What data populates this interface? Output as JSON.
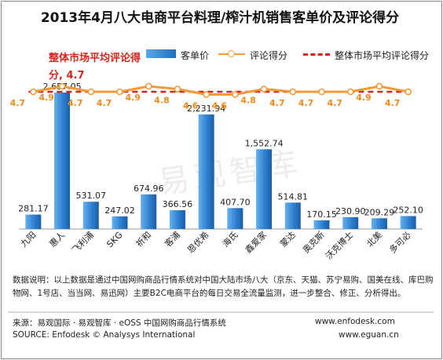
{
  "title": "2013年4月八大电商平台料理/榨汁机销售客单价及评论得分",
  "average_note": "整体市场平均评论得分, 4.7",
  "legend": {
    "bar": "客单价",
    "line": "评论得分",
    "avg": "整体市场平均评论得分"
  },
  "watermark": "易观智库",
  "note": "数据说明：以上数据是通过中国网购商品行情系统对中国大陆市场八大（京东、天猫、苏宁易购、国美在线、库巴购物网、1号店、当当网、易迅网）主要B2C电商平台的每日交易全流量监测，进一步整合、修正、分析得出。",
  "footer": {
    "source_cn": "来源：易观国际 · 易观智库 · eOSS 中国网购商品行情系统",
    "source_en": "SOURCE: Enfodesk © Analysys International",
    "url1": "www.enfodesk.com",
    "url2": "www.eguan.cn"
  },
  "chart_data": {
    "type": "bar",
    "categories": [
      "九阳",
      "惠人",
      "飞利浦",
      "SKG",
      "祈和",
      "客浦",
      "恩优希",
      "海氏",
      "鑫爱家",
      "蒙达",
      "奥克斯",
      "沃克博士",
      "北美",
      "多可必"
    ],
    "series": [
      {
        "name": "客单价",
        "type": "bar",
        "values": [
          281.17,
          2657.05,
          531.07,
          247.02,
          674.96,
          366.56,
          2231.94,
          407.7,
          1552.74,
          514.81,
          170.15,
          230.9,
          209.29,
          252.1
        ],
        "labels": [
          "281.17",
          "2,657.05",
          "531.07",
          "247.02",
          "674.96",
          "366.56",
          "2,231.94",
          "407.70",
          "1,552.74",
          "514.81",
          "170.15",
          "230.90",
          "209.29",
          "252.10"
        ]
      },
      {
        "name": "评论得分",
        "type": "line",
        "values": [
          4.7,
          4.9,
          4.7,
          4.7,
          4.9,
          4.8,
          4.6,
          4.6,
          4.8,
          4.7,
          4.7,
          4.7,
          4.9,
          4.7
        ]
      },
      {
        "name": "整体市场平均评论得分",
        "type": "line",
        "values": [
          4.7,
          4.7,
          4.7,
          4.7,
          4.7,
          4.7,
          4.7,
          4.7,
          4.7,
          4.7,
          4.7,
          4.7,
          4.7,
          4.7
        ]
      }
    ],
    "colors": {
      "bar": "#2f80d0",
      "line": "#f39a36",
      "avg": "#e02020",
      "score_label": "#f08a1c"
    }
  }
}
